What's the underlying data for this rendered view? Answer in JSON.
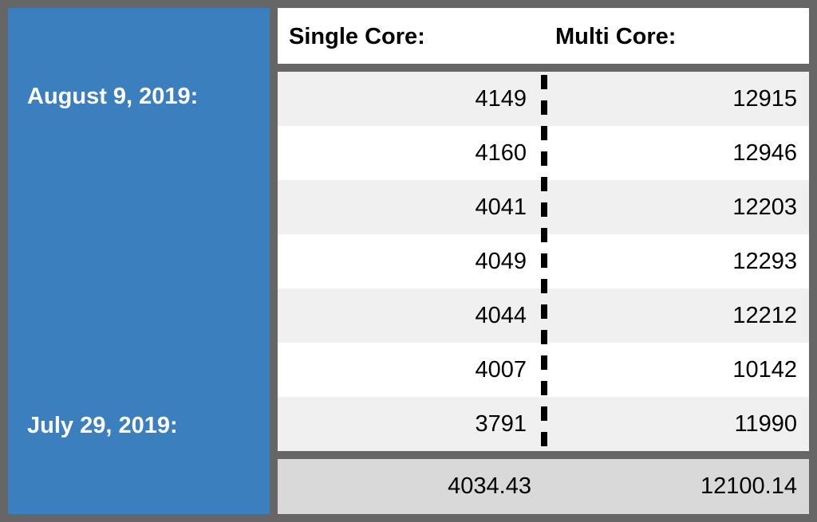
{
  "dates": [
    "August 9, 2019:",
    "July 29, 2019:"
  ],
  "table": {
    "header": [
      "Single Core:",
      "Multi Core:"
    ],
    "rows": [
      [
        4149,
        12915
      ],
      [
        4160,
        12946
      ],
      [
        4041,
        12203
      ],
      [
        4049,
        12293
      ],
      [
        4044,
        12212
      ],
      [
        4007,
        10142
      ],
      [
        3791,
        11990
      ]
    ],
    "footer": [
      4034.43,
      12100.14
    ]
  }
}
